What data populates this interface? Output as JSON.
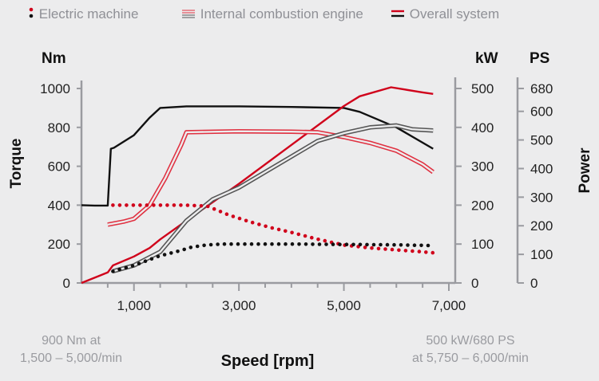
{
  "legend": [
    {
      "label": "Electric machine",
      "style": "dots",
      "colors": [
        "#000000",
        "#d0021b"
      ]
    },
    {
      "label": "Internal combustion engine",
      "style": "double-line",
      "colors": [
        "#e03040",
        "#555555"
      ]
    },
    {
      "label": "Overall system",
      "style": "solid",
      "colors": [
        "#d0021b",
        "#111111"
      ]
    }
  ],
  "notes": {
    "torque_peak": [
      "900 Nm at",
      "1,500 – 5,000/min"
    ],
    "power_peak": [
      "500 kW/680 PS",
      "at 5,750 – 6,000/min"
    ]
  },
  "chart_data": {
    "type": "line",
    "xlabel": "Speed [rpm]",
    "xlim": [
      0,
      7000
    ],
    "xticks": [
      1000,
      3000,
      5000,
      7000
    ],
    "xticklabels": [
      "1,000",
      "3,000",
      "5,000",
      "7,000"
    ],
    "y_left": {
      "label": "Torque",
      "unit": "Nm",
      "lim": [
        0,
        1000
      ],
      "ticks": [
        0,
        200,
        400,
        600,
        800,
        1000
      ]
    },
    "y_kw": {
      "unit": "kW",
      "lim": [
        0,
        500
      ],
      "ticks": [
        0,
        100,
        200,
        300,
        400,
        500
      ]
    },
    "y_ps": {
      "label": "Power",
      "unit": "PS",
      "ticks": [
        0,
        100,
        200,
        300,
        400,
        500,
        600,
        680
      ]
    },
    "series": [
      {
        "name": "Overall system torque",
        "axis": "torque",
        "style": "solid",
        "color": "#111111",
        "x": [
          0,
          250,
          500,
          560,
          620,
          1000,
          1300,
          1500,
          2000,
          3000,
          4000,
          5000,
          5300,
          6000,
          6700
        ],
        "y": [
          400,
          398,
          398,
          690,
          695,
          760,
          850,
          900,
          908,
          908,
          905,
          900,
          880,
          800,
          690
        ]
      },
      {
        "name": "Overall system power",
        "axis": "kW",
        "style": "solid",
        "color": "#d0021b",
        "x": [
          0,
          500,
          600,
          1000,
          1300,
          1500,
          2000,
          3000,
          4000,
          5000,
          5300,
          5900,
          6500,
          6700
        ],
        "y": [
          0,
          27,
          45,
          68,
          90,
          112,
          160,
          255,
          355,
          455,
          480,
          503,
          490,
          486
        ]
      },
      {
        "name": "Internal combustion engine torque",
        "axis": "torque",
        "style": "double-line",
        "color": "#e03040",
        "x": [
          500,
          800,
          1000,
          1300,
          1600,
          1900,
          2000,
          3000,
          4000,
          4500,
          5000,
          5500,
          6000,
          6500,
          6700
        ],
        "y": [
          300,
          315,
          330,
          400,
          540,
          710,
          775,
          780,
          778,
          775,
          750,
          720,
          680,
          610,
          570
        ]
      },
      {
        "name": "Internal combustion engine power",
        "axis": "kW",
        "style": "double-line",
        "color": "#555555",
        "x": [
          600,
          1000,
          1500,
          2000,
          2500,
          3000,
          4000,
          4500,
          5000,
          5500,
          6000,
          6300,
          6700
        ],
        "y": [
          30,
          45,
          80,
          160,
          215,
          245,
          325,
          365,
          385,
          400,
          405,
          395,
          392
        ]
      },
      {
        "name": "Electric machine torque",
        "axis": "torque",
        "style": "dots",
        "color": "#d0021b",
        "x": [
          600,
          1000,
          1500,
          2000,
          2400,
          2800,
          3200,
          3600,
          4000,
          4500,
          5000,
          5500,
          6000,
          6500,
          6700
        ],
        "y": [
          400,
          400,
          400,
          400,
          395,
          350,
          315,
          285,
          260,
          225,
          195,
          180,
          170,
          160,
          155
        ]
      },
      {
        "name": "Electric machine power",
        "axis": "kW",
        "style": "dots",
        "color": "#111111",
        "x": [
          600,
          1000,
          1500,
          1800,
          2100,
          2400,
          2700,
          3000,
          4000,
          5000,
          6000,
          6700
        ],
        "y": [
          30,
          45,
          70,
          80,
          92,
          98,
          100,
          100,
          100,
          99,
          98,
          96
        ]
      }
    ]
  }
}
